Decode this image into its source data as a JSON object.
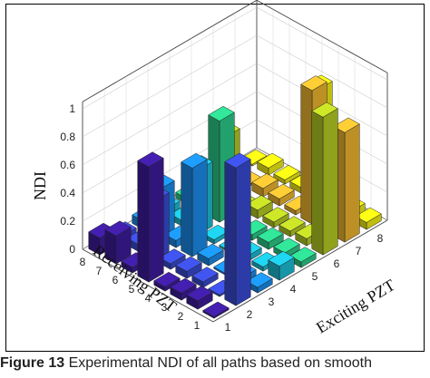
{
  "chart_data": {
    "type": "bar3d",
    "title": "",
    "xlabel": "Exciting PZT",
    "ylabel": "Receiving PZT",
    "zlabel": "NDI",
    "x_categories": [
      "1",
      "2",
      "3",
      "4",
      "5",
      "6",
      "7",
      "8"
    ],
    "y_categories": [
      "1",
      "2",
      "3",
      "4",
      "5",
      "6",
      "7",
      "8"
    ],
    "z_ticks": [
      "0",
      "0.2",
      "0.4",
      "0.6",
      "0.8",
      "1"
    ],
    "zlim": [
      0,
      1
    ],
    "grid": true,
    "colormap_by_exciting_pzt": [
      "#3d1c9e",
      "#3a4cd8",
      "#1b8ef0",
      "#1cc0d8",
      "#2ccf8a",
      "#b8cf24",
      "#f2b92f",
      "#f8f214"
    ],
    "values_rows_receiving_cols_exciting": [
      [
        0.0,
        0.98,
        0.04,
        0.1,
        0.04,
        0.98,
        0.78,
        0.05
      ],
      [
        0.06,
        0.0,
        0.04,
        0.03,
        0.04,
        0.05,
        0.03,
        0.06
      ],
      [
        0.05,
        0.04,
        0.0,
        0.04,
        0.05,
        0.04,
        0.95,
        0.04
      ],
      [
        0.03,
        0.05,
        0.05,
        0.0,
        0.04,
        0.04,
        0.03,
        0.8
      ],
      [
        0.82,
        0.04,
        0.63,
        0.03,
        0.0,
        0.06,
        0.05,
        0.04
      ],
      [
        0.04,
        0.42,
        0.05,
        0.46,
        0.72,
        0.0,
        0.06,
        0.03
      ],
      [
        0.2,
        0.05,
        0.35,
        0.04,
        0.06,
        0.45,
        0.0,
        0.05
      ],
      [
        0.12,
        0.04,
        0.06,
        0.05,
        0.04,
        0.05,
        0.04,
        0.0
      ]
    ]
  },
  "caption": {
    "label": "Figure 13",
    "text": "Experimental NDI of all paths based on smooth"
  }
}
